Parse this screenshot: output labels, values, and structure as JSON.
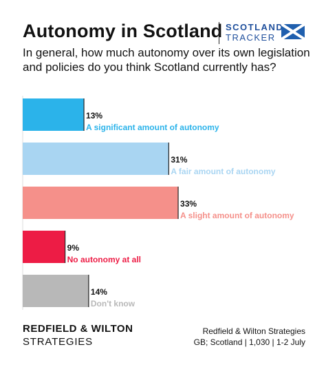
{
  "header": {
    "title": "Autonomy in Scotland",
    "brand_line1": "SCOTLAND",
    "brand_line2": "TRACKER",
    "question": "In general, how much autonomy over its own legislation and policies do you think Scotland currently has?"
  },
  "colors": {
    "brand": "#1f4f9c",
    "flag_blue": "#1f5fae",
    "significant": "#2bb3ea",
    "fair": "#a9d5f2",
    "slight": "#f5908a",
    "none": "#ed1c45",
    "dont_know": "#b8b8b8"
  },
  "chart_data": {
    "type": "bar",
    "orientation": "horizontal",
    "categories": [
      "A significant amount of autonomy",
      "A fair amount of autonomy",
      "A slight amount of autonomy",
      "No autonomy at all",
      "Don't know"
    ],
    "values": [
      13,
      31,
      33,
      9,
      14
    ],
    "value_labels": [
      "13%",
      "31%",
      "33%",
      "9%",
      "14%"
    ],
    "colors": [
      "#2bb3ea",
      "#a9d5f2",
      "#f5908a",
      "#ed1c45",
      "#b8b8b8"
    ],
    "label_colors": [
      "#2bb3ea",
      "#a9d5f2",
      "#f5908a",
      "#ed1c45",
      "#b8b8b8"
    ],
    "xlim": [
      0,
      100
    ],
    "grid": false,
    "legend": "none"
  },
  "footer": {
    "org_line1": "REDFIELD & WILTON",
    "org_line2": "STRATEGIES",
    "source_line1": "Redfield & Wilton Strategies",
    "source_line2": "GB; Scotland | 1,030 | 1-2 July"
  }
}
